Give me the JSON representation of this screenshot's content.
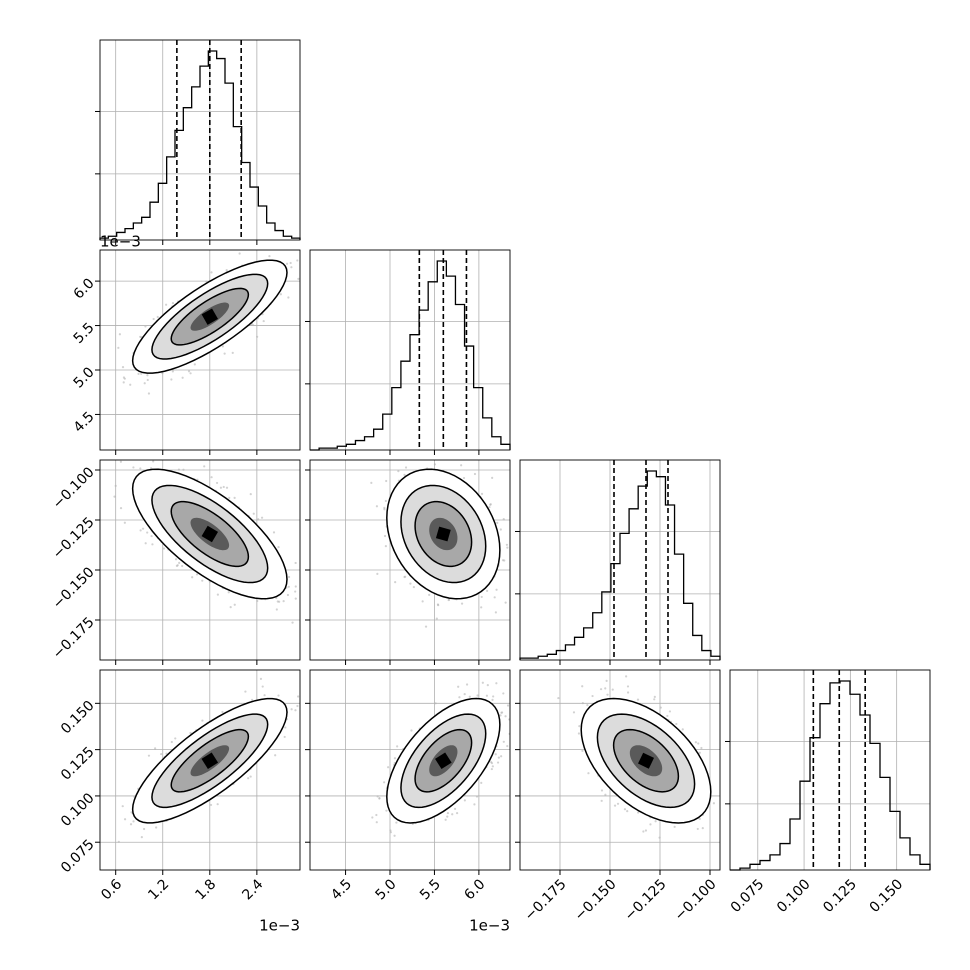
{
  "chart_data": {
    "type": "corner",
    "title": "",
    "offset_labels": {
      "x0": "1e−3",
      "x1": "1e−3",
      "y1": "1e−3"
    },
    "params": [
      {
        "range": [
          0.4,
          2.95
        ],
        "ticks": [
          0.6,
          1.2,
          1.8,
          2.4
        ],
        "tick_labels": [
          "0.6",
          "1.2",
          "1.8",
          "2.4"
        ],
        "quantiles": [
          1.38,
          1.8,
          2.2
        ],
        "hist": [
          0.01,
          0.02,
          0.04,
          0.06,
          0.09,
          0.12,
          0.2,
          0.3,
          0.44,
          0.58,
          0.7,
          0.81,
          0.92,
          1.0,
          0.96,
          0.83,
          0.6,
          0.41,
          0.28,
          0.18,
          0.09,
          0.05,
          0.02,
          0.01
        ]
      },
      {
        "range": [
          4.1,
          6.35
        ],
        "ticks": [
          4.5,
          5.0,
          5.5,
          6.0
        ],
        "tick_labels": [
          "4.5",
          "5.0",
          "5.5",
          "6.0"
        ],
        "quantiles": [
          5.33,
          5.6,
          5.86
        ],
        "hist": [
          0.0,
          0.01,
          0.01,
          0.02,
          0.03,
          0.05,
          0.07,
          0.11,
          0.19,
          0.33,
          0.47,
          0.61,
          0.74,
          0.89,
          1.0,
          0.92,
          0.77,
          0.55,
          0.33,
          0.17,
          0.07,
          0.03
        ]
      },
      {
        "range": [
          -0.195,
          -0.095
        ],
        "ticks": [
          -0.175,
          -0.15,
          -0.125,
          -0.1
        ],
        "tick_labels": [
          "−0.175",
          "−0.150",
          "−0.125",
          "−0.100"
        ],
        "quantiles": [
          -0.148,
          -0.132,
          -0.121
        ],
        "hist": [
          0.01,
          0.01,
          0.02,
          0.03,
          0.05,
          0.08,
          0.12,
          0.17,
          0.25,
          0.36,
          0.51,
          0.67,
          0.8,
          0.92,
          1.0,
          0.97,
          0.82,
          0.56,
          0.3,
          0.13,
          0.05,
          0.02
        ]
      },
      {
        "range": [
          0.06,
          0.168
        ],
        "ticks": [
          0.075,
          0.1,
          0.125,
          0.15
        ],
        "tick_labels": [
          "0.075",
          "0.100",
          "0.125",
          "0.150"
        ],
        "quantiles": [
          0.105,
          0.119,
          0.133
        ],
        "hist": [
          0.0,
          0.01,
          0.03,
          0.05,
          0.08,
          0.14,
          0.27,
          0.47,
          0.7,
          0.88,
          0.99,
          1.0,
          0.93,
          0.82,
          0.67,
          0.49,
          0.31,
          0.17,
          0.08,
          0.03
        ]
      }
    ],
    "correlations": {
      "1-0": 0.78,
      "2-0": -0.7,
      "2-1": -0.25,
      "3-0": 0.78,
      "3-1": 0.58,
      "3-2": -0.5
    },
    "grid": true
  }
}
